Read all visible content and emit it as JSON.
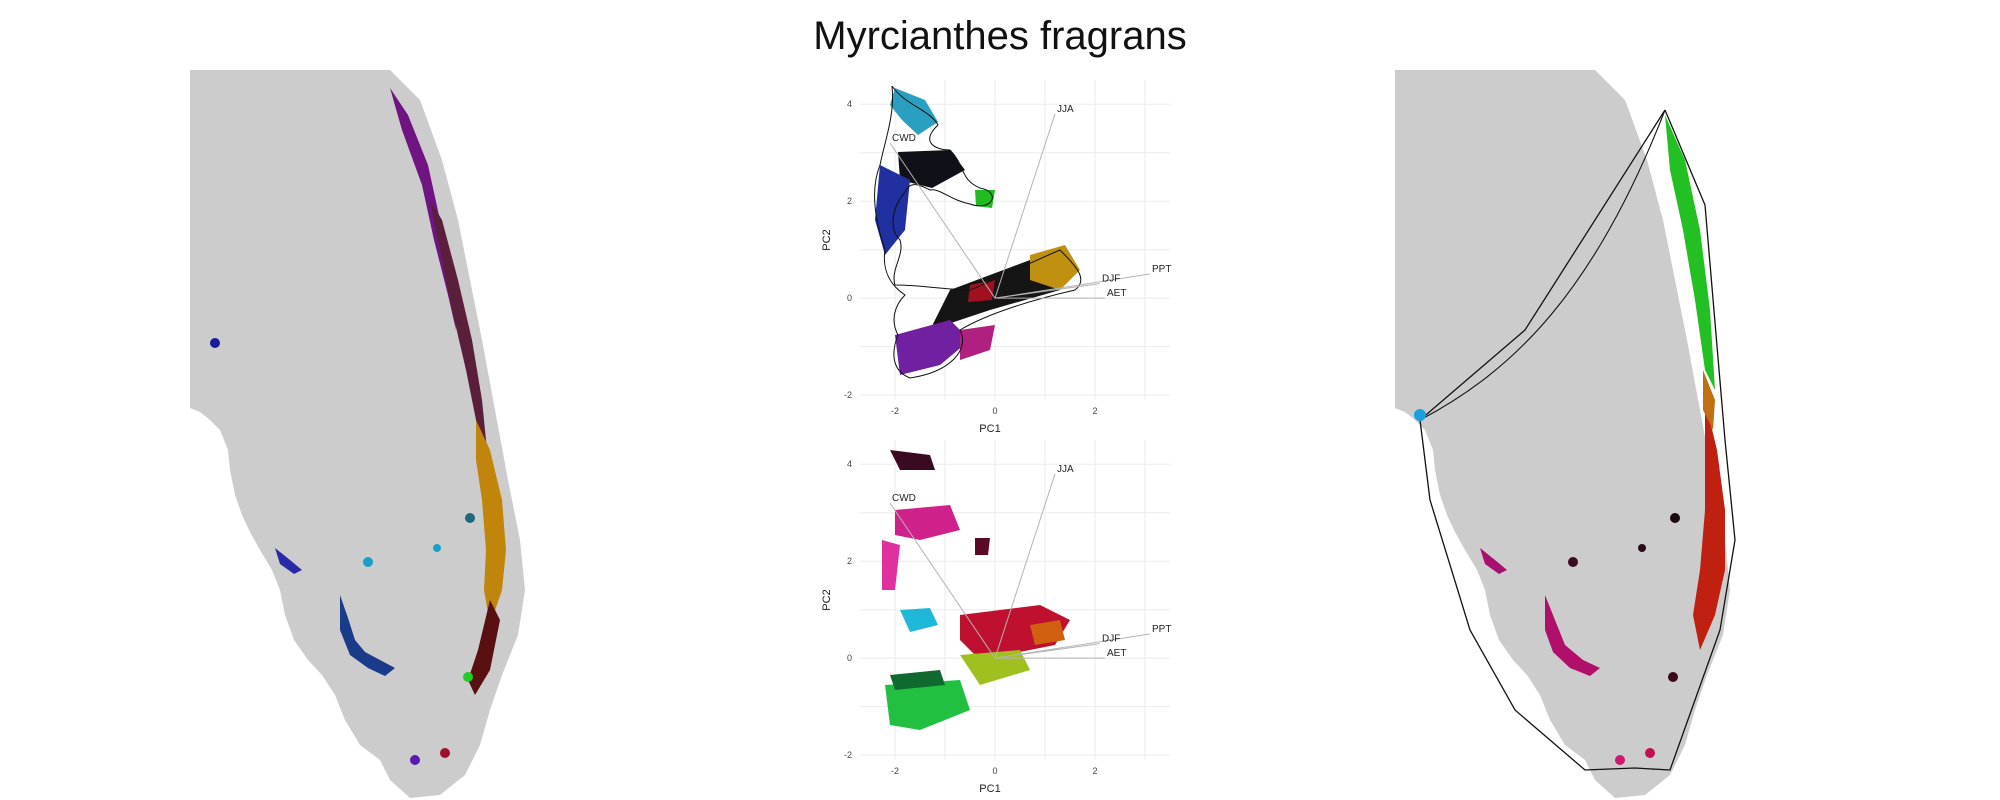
{
  "title": "Myrcianthes fragrans",
  "pca_top": {
    "xlabel": "PC1",
    "ylabel": "PC2",
    "x_ticks": [
      "-2",
      "0",
      "2"
    ],
    "y_ticks": [
      "4",
      "2",
      "0",
      "-2"
    ],
    "xlim": [
      -2.7,
      3.5
    ],
    "ylim": [
      -2.1,
      4.5
    ],
    "arrows": [
      {
        "label": "JJA",
        "x": 1.2,
        "y": 3.8
      },
      {
        "label": "CWD",
        "x": -2.1,
        "y": 3.2
      },
      {
        "label": "DJF",
        "x": 2.1,
        "y": 0.3
      },
      {
        "label": "PPT",
        "x": 3.1,
        "y": 0.5
      },
      {
        "label": "AET",
        "x": 2.2,
        "y": 0.0
      }
    ]
  },
  "pca_bottom": {
    "xlabel": "PC1",
    "ylabel": "PC2",
    "x_ticks": [
      "-2",
      "0",
      "2"
    ],
    "y_ticks": [
      "4",
      "2",
      "0",
      "-2"
    ],
    "xlim": [
      -2.7,
      3.5
    ],
    "ylim": [
      -2.1,
      4.5
    ],
    "arrows": [
      {
        "label": "JJA",
        "x": 1.2,
        "y": 3.8
      },
      {
        "label": "CWD",
        "x": -2.1,
        "y": 3.2
      },
      {
        "label": "DJF",
        "x": 2.1,
        "y": 0.3
      },
      {
        "label": "PPT",
        "x": 3.1,
        "y": 0.5
      },
      {
        "label": "AET",
        "x": 2.2,
        "y": 0.0
      }
    ]
  },
  "colors": {
    "land": "#cccccc",
    "background": "#ffffff",
    "grid": "#ebebeb",
    "arrow": "#b3b3b3"
  }
}
